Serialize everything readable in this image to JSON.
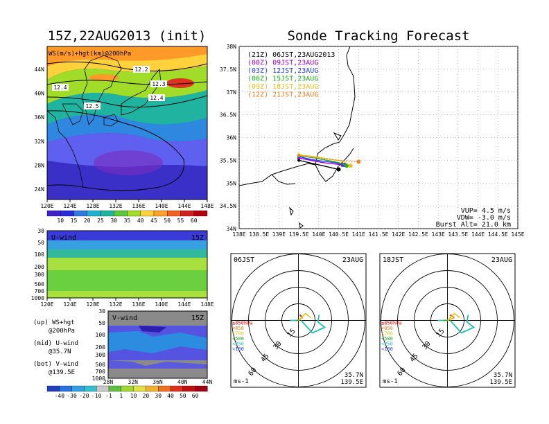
{
  "left_title": "15Z,22AUG2013 (init)",
  "right_title": "Sonde Tracking Forecast",
  "map_panel": {
    "label": "WS(m/s)+hgt(km)@200hPa",
    "lon_ticks": [
      "120E",
      "124E",
      "128E",
      "132E",
      "136E",
      "140E",
      "144E",
      "148E"
    ],
    "lat_ticks": [
      "44N",
      "40N",
      "36N",
      "32N",
      "28N",
      "24N"
    ],
    "contours": [
      "12.2",
      "12.3",
      "12.4",
      "12.4",
      "12.5"
    ],
    "colorbar": [
      "10",
      "15",
      "20",
      "25",
      "30",
      "35",
      "40",
      "45",
      "50",
      "55",
      "60"
    ]
  },
  "u_panel": {
    "label": "U-wind",
    "time": "15Z",
    "p_ticks": [
      "30",
      "50",
      "100",
      "200",
      "300",
      "500",
      "700",
      "1000"
    ],
    "lon_ticks": [
      "120E",
      "124E",
      "128E",
      "132E",
      "136E",
      "140E",
      "144E",
      "148E"
    ]
  },
  "v_panel": {
    "label": "V-wind",
    "time": "15Z",
    "p_ticks": [
      "30",
      "50",
      "100",
      "200",
      "300",
      "500",
      "700",
      "1000"
    ],
    "lat_ticks": [
      "28N",
      "32N",
      "36N",
      "40N",
      "44N"
    ],
    "colorbar": [
      "-40",
      "-30",
      "-20",
      "-10",
      "-1",
      "1",
      "10",
      "20",
      "30",
      "40",
      "50",
      "60"
    ]
  },
  "legend_notes": [
    {
      "a": "(up) WS+hgt",
      "b": "@200hPa"
    },
    {
      "a": "(mid) U-wind",
      "b": "@35.7N"
    },
    {
      "a": "(bot) V-wind",
      "b": "@139.5E"
    }
  ],
  "track_panel": {
    "lat_ticks": [
      "38N",
      "37.5N",
      "37N",
      "36.5N",
      "36N",
      "35.5N",
      "35N",
      "34.5N",
      "34N"
    ],
    "lon_ticks": [
      "138E",
      "138.5E",
      "139E",
      "139.5E",
      "140E",
      "140.5E",
      "141E",
      "141.5E",
      "142E",
      "142.5E",
      "143E",
      "143.5E",
      "144E",
      "144.5E",
      "145E"
    ],
    "launches": [
      {
        "label": "(21Z)  06JST,23AUG2013",
        "color": "#000000"
      },
      {
        "label": "(00Z)  09JST,23AUG",
        "color": "#a000c8"
      },
      {
        "label": "(03Z)  12JST,23AUG",
        "color": "#2040ff"
      },
      {
        "label": "(06Z)  15JST,23AUG",
        "color": "#20b020"
      },
      {
        "label": "(09Z)  18JST,23AUG",
        "color": "#e8c020"
      },
      {
        "label": "(12Z)  21JST,23AUG",
        "color": "#f08020"
      }
    ],
    "params": [
      "VUP=  4.5 m/s",
      "VDW= -3.0 m/s",
      "Burst Alt= 21.0 km"
    ]
  },
  "hodographs": [
    {
      "time": "06JST",
      "date": "23AUG"
    },
    {
      "time": "18JST",
      "date": "23AUG"
    }
  ],
  "hodo_common": {
    "rings": [
      "15",
      "30",
      "45",
      "60"
    ],
    "levels": [
      {
        "label": "≥850hPa",
        "color": "#ff0000"
      },
      {
        "label": "<850",
        "color": "#f08020"
      },
      {
        "label": "<700",
        "color": "#e8c020"
      },
      {
        "label": "<500",
        "color": "#20b020"
      },
      {
        "label": "<250",
        "color": "#20c0c0"
      },
      {
        "label": "<100",
        "color": "#2040ff"
      }
    ],
    "unit": "ms-1",
    "loc1": "35.7N",
    "loc2": "139.5E"
  },
  "chart_data": [
    {
      "type": "heatmap",
      "title": "WS(m/s)+hgt(km)@200hPa",
      "xlim": [
        "120E",
        "148E"
      ],
      "ylim": [
        "22N",
        "47N"
      ]
    },
    {
      "type": "heatmap",
      "title": "U-wind",
      "xlim": [
        "120E",
        "148E"
      ],
      "ylim": [
        1000,
        30
      ]
    },
    {
      "type": "heatmap",
      "title": "V-wind",
      "xlim": [
        "28N",
        "44N"
      ],
      "ylim": [
        1000,
        30
      ]
    },
    {
      "type": "line",
      "title": "Sonde Tracking Forecast",
      "xlim": [
        138,
        145
      ],
      "ylim": [
        34,
        38
      ],
      "series": [
        {
          "name": "(21Z)  06JST,23AUG2013",
          "x": [
            139.5,
            139.75,
            140.0,
            140.25,
            140.5
          ],
          "y": [
            35.5,
            35.45,
            35.4,
            35.35,
            35.3
          ]
        },
        {
          "name": "(00Z)  09JST,23AUG",
          "x": [
            139.5,
            139.8,
            140.1,
            140.4,
            140.6
          ],
          "y": [
            35.55,
            35.5,
            35.45,
            35.42,
            35.4
          ]
        },
        {
          "name": "(03Z)  12JST,23AUG",
          "x": [
            139.5,
            139.8,
            140.1,
            140.4,
            140.65
          ],
          "y": [
            35.58,
            35.52,
            35.48,
            35.45,
            35.4
          ]
        },
        {
          "name": "(06Z)  15JST,23AUG",
          "x": [
            139.5,
            139.9,
            140.2,
            140.5,
            140.7
          ],
          "y": [
            35.6,
            35.55,
            35.5,
            35.45,
            35.38
          ]
        },
        {
          "name": "(09Z)  18JST,23AUG",
          "x": [
            139.5,
            139.9,
            140.3,
            140.6,
            140.8
          ],
          "y": [
            35.62,
            35.58,
            35.52,
            35.48,
            35.38
          ]
        },
        {
          "name": "(12Z)  21JST,23AUG",
          "x": [
            139.5,
            140.0,
            140.5,
            140.8,
            141.0
          ],
          "y": [
            35.6,
            35.55,
            35.5,
            35.48,
            35.47
          ]
        }
      ]
    }
  ]
}
